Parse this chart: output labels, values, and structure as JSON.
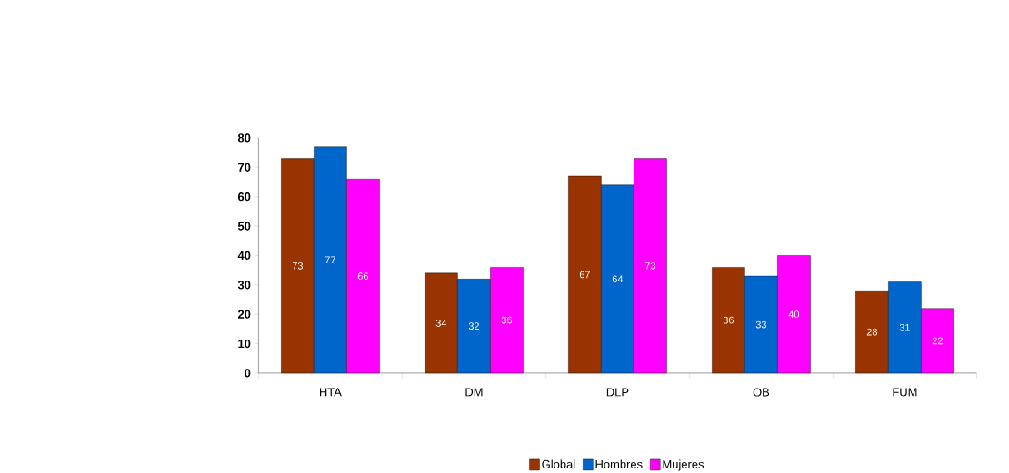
{
  "chart_data": {
    "type": "bar",
    "categories": [
      "HTA",
      "DM",
      "DLP",
      "OB",
      "FUM"
    ],
    "series": [
      {
        "name": "Global",
        "color": "#993300",
        "values": [
          73,
          34,
          67,
          36,
          28
        ]
      },
      {
        "name": "Hombres",
        "color": "#0066cc",
        "values": [
          77,
          32,
          64,
          33,
          31
        ]
      },
      {
        "name": "Mujeres",
        "color": "#ff00ff",
        "values": [
          66,
          36,
          73,
          40,
          22
        ]
      }
    ],
    "ylim": [
      0,
      80
    ],
    "yticks": [
      0,
      10,
      20,
      30,
      40,
      50,
      60,
      70,
      80
    ],
    "data_labels": true,
    "legend": "bottom",
    "grid": false
  }
}
